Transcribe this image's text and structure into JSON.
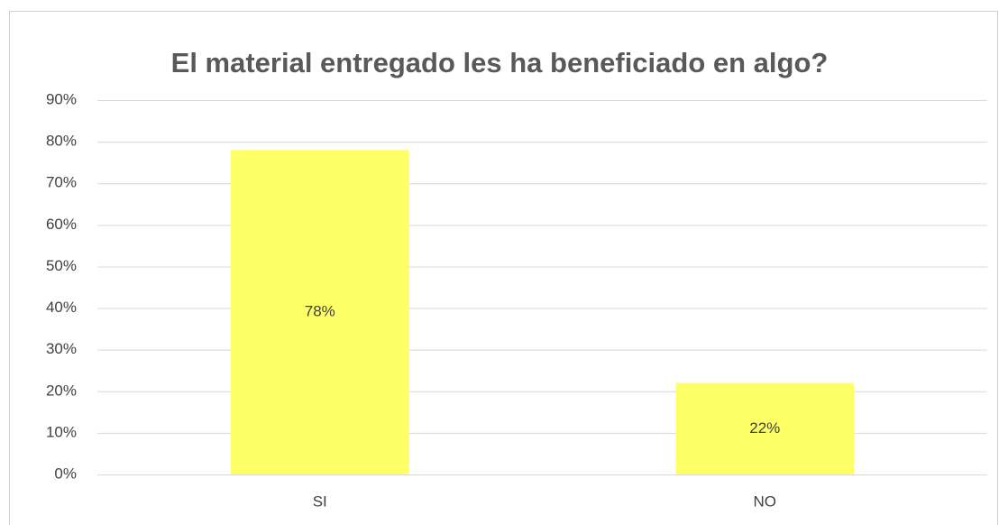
{
  "chart_data": {
    "type": "bar",
    "title": "El material entregado les ha beneficiado en algo?",
    "categories": [
      "SI",
      "NO"
    ],
    "values": [
      78,
      22
    ],
    "value_labels": [
      "78%",
      "22%"
    ],
    "color": "#ffff66",
    "ylim": [
      0,
      90
    ],
    "yticks": [
      {
        "value": 0,
        "label": "0%"
      },
      {
        "value": 10,
        "label": "10%"
      },
      {
        "value": 20,
        "label": "20%"
      },
      {
        "value": 30,
        "label": "30%"
      },
      {
        "value": 40,
        "label": "40%"
      },
      {
        "value": 50,
        "label": "50%"
      },
      {
        "value": 60,
        "label": "60%"
      },
      {
        "value": 70,
        "label": "70%"
      },
      {
        "value": 80,
        "label": "80%"
      },
      {
        "value": 90,
        "label": "90%"
      }
    ],
    "grid": true
  }
}
